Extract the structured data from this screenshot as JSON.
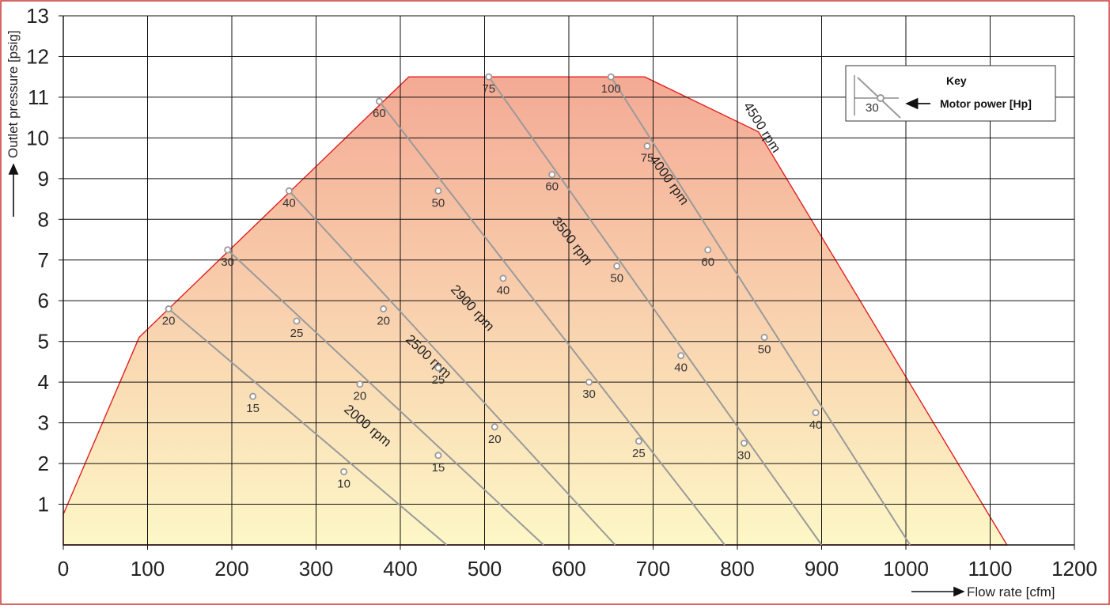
{
  "chart_data": {
    "type": "line",
    "x_axis": {
      "label": "Flow rate [cfm]",
      "range": [
        0,
        1200
      ],
      "ticks": [
        "0",
        "100",
        "200",
        "300",
        "400",
        "500",
        "600",
        "700",
        "800",
        "900",
        "1000",
        "1100",
        "1200"
      ]
    },
    "y_axis": {
      "label": "Outlet pressure [psig]",
      "range": [
        0,
        13
      ],
      "ticks": [
        "1",
        "2",
        "3",
        "4",
        "5",
        "6",
        "7",
        "8",
        "9",
        "10",
        "11",
        "12",
        "13"
      ]
    },
    "grid": true,
    "operating_envelope": {
      "points": [
        [
          0,
          0
        ],
        [
          0,
          0.75
        ],
        [
          90,
          5.1
        ],
        [
          410,
          11.5
        ],
        [
          690,
          11.5
        ],
        [
          825,
          10.15
        ],
        [
          1120,
          0
        ]
      ]
    },
    "colors": {
      "envelope_top": "#f4aa95",
      "envelope_bottom": "#fdf7c6",
      "envelope_edge": "#e02020",
      "speed_line": "#9a9a9a",
      "grid": "#111111",
      "frame": "#cc3333"
    },
    "series": [
      {
        "name": "2000 rpm",
        "label_at": [
          358,
          2.85
        ],
        "line": [
          [
            125,
            5.8
          ],
          [
            455,
            0
          ]
        ],
        "points": [
          {
            "x": 125,
            "y": 5.8,
            "label": "20"
          },
          {
            "x": 225,
            "y": 3.65,
            "label": "15"
          },
          {
            "x": 333,
            "y": 1.8,
            "label": "10"
          }
        ]
      },
      {
        "name": "2500 rpm",
        "label_at": [
          430,
          4.55
        ],
        "line": [
          [
            195,
            7.25
          ],
          [
            570,
            0
          ]
        ],
        "points": [
          {
            "x": 195,
            "y": 7.25,
            "label": "30"
          },
          {
            "x": 277,
            "y": 5.5,
            "label": "25"
          },
          {
            "x": 352,
            "y": 3.95,
            "label": "20"
          },
          {
            "x": 445,
            "y": 2.2,
            "label": "15"
          }
        ]
      },
      {
        "name": "2900 rpm",
        "label_at": [
          482,
          5.75
        ],
        "line": [
          [
            268,
            8.7
          ],
          [
            655,
            0
          ]
        ],
        "points": [
          {
            "x": 268,
            "y": 8.7,
            "label": "40"
          },
          {
            "x": 380,
            "y": 5.8,
            "label": "20"
          },
          {
            "x": 445,
            "y": 4.35,
            "label": "25"
          },
          {
            "x": 512,
            "y": 2.9,
            "label": "20"
          }
        ]
      },
      {
        "name": "3500 rpm",
        "label_at": [
          600,
          7.4
        ],
        "line": [
          [
            375,
            10.9
          ],
          [
            785,
            0
          ]
        ],
        "points": [
          {
            "x": 375,
            "y": 10.9,
            "label": "60"
          },
          {
            "x": 445,
            "y": 8.7,
            "label": "50"
          },
          {
            "x": 522,
            "y": 6.55,
            "label": "40"
          },
          {
            "x": 624,
            "y": 4.0,
            "label": "30"
          },
          {
            "x": 683,
            "y": 2.55,
            "label": "25"
          }
        ]
      },
      {
        "name": "4000 rpm",
        "label_at": [
          715,
          8.9
        ],
        "line": [
          [
            505,
            11.5
          ],
          [
            900,
            0
          ]
        ],
        "points": [
          {
            "x": 505,
            "y": 11.5,
            "label": "75"
          },
          {
            "x": 580,
            "y": 9.1,
            "label": "60"
          },
          {
            "x": 657,
            "y": 6.85,
            "label": "50"
          },
          {
            "x": 733,
            "y": 4.65,
            "label": "40"
          },
          {
            "x": 808,
            "y": 2.5,
            "label": "30"
          }
        ]
      },
      {
        "name": "4500 rpm",
        "label_at": [
          825,
          10.2
        ],
        "line": [
          [
            650,
            11.5
          ],
          [
            1005,
            0
          ]
        ],
        "points": [
          {
            "x": 650,
            "y": 11.5,
            "label": "100"
          },
          {
            "x": 693,
            "y": 9.8,
            "label": "75"
          },
          {
            "x": 765,
            "y": 7.25,
            "label": "60"
          },
          {
            "x": 832,
            "y": 5.1,
            "label": "50"
          },
          {
            "x": 893,
            "y": 3.25,
            "label": "40"
          }
        ]
      }
    ],
    "legend": {
      "title": "Key",
      "example_value": "30",
      "description": "Motor power [Hp]",
      "placement": "top-right"
    }
  }
}
